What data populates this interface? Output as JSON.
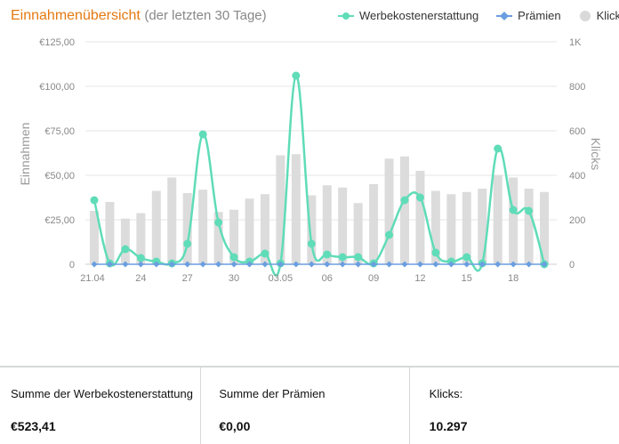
{
  "header": {
    "title": "Einnahmenübersicht",
    "subtitle": "(der letzten 30 Tage)"
  },
  "legend": [
    {
      "label": "Werbekostenerstattung",
      "color": "#5fdcb8",
      "shape": "circle-line"
    },
    {
      "label": "Prämien",
      "color": "#6a9ee0",
      "shape": "diamond-line"
    },
    {
      "label": "Klicks",
      "color": "#d9d9d9",
      "shape": "circle"
    }
  ],
  "chart_data": {
    "type": "bar+line",
    "ylabel_left": "Einnahmen",
    "ylabel_right": "Klicks",
    "y_left_ticks": [
      "€125,00",
      "€100,00",
      "€75,00",
      "€50,00",
      "€25,00",
      "0"
    ],
    "y_left_range": [
      0,
      125
    ],
    "y_right_ticks": [
      "1K",
      "800",
      "600",
      "400",
      "200",
      "0"
    ],
    "y_right_range": [
      0,
      1000
    ],
    "x_tick_labels": [
      "21.04",
      "24",
      "27",
      "30",
      "03.05",
      "06",
      "09",
      "12",
      "15",
      "18"
    ],
    "categories": [
      "21.04",
      "22.04",
      "23.04",
      "24.04",
      "25.04",
      "26.04",
      "27.04",
      "28.04",
      "29.04",
      "30.04",
      "01.05",
      "02.05",
      "03.05",
      "04.05",
      "05.05",
      "06.05",
      "07.05",
      "08.05",
      "09.05",
      "10.05",
      "11.05",
      "12.05",
      "13.05",
      "14.05",
      "15.05",
      "16.05",
      "17.05",
      "18.05",
      "19.05",
      "20.05"
    ],
    "series": [
      {
        "name": "Klicks",
        "type": "bar",
        "axis": "right",
        "values": [
          240,
          280,
          205,
          230,
          330,
          390,
          320,
          335,
          235,
          245,
          295,
          315,
          490,
          495,
          310,
          355,
          345,
          275,
          360,
          475,
          485,
          420,
          330,
          315,
          325,
          340,
          400,
          390,
          340,
          325
        ]
      },
      {
        "name": "Werbekostenerstattung",
        "type": "line",
        "axis": "left",
        "values": [
          36,
          0.5,
          8.5,
          3.5,
          1.5,
          0.5,
          11.5,
          73,
          23.5,
          4,
          1.5,
          6,
          0.5,
          106,
          11.5,
          5.5,
          4,
          4,
          0.5,
          16.5,
          36,
          37.5,
          6.5,
          1.5,
          4,
          0.5,
          65,
          30.5,
          30,
          0
        ]
      },
      {
        "name": "Prämien",
        "type": "line",
        "axis": "left",
        "values": [
          0,
          0,
          0,
          0,
          0,
          0,
          0,
          0,
          0,
          0,
          0,
          0,
          0,
          0,
          0,
          0,
          0,
          0,
          0,
          0,
          0,
          0,
          0,
          0,
          0,
          0,
          0,
          0,
          0,
          0
        ]
      }
    ],
    "grid": true
  },
  "summary": [
    {
      "label": "Summe der Werbekostenerstattung",
      "value": "€523,41"
    },
    {
      "label": "Summe der Prämien",
      "value": "€0,00"
    },
    {
      "label": "Klicks:",
      "value": "10.297"
    }
  ]
}
